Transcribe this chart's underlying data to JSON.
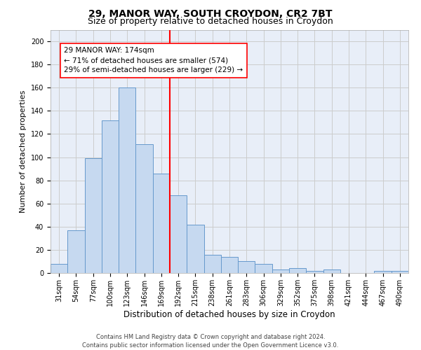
{
  "title1": "29, MANOR WAY, SOUTH CROYDON, CR2 7BT",
  "title2": "Size of property relative to detached houses in Croydon",
  "xlabel": "Distribution of detached houses by size in Croydon",
  "ylabel": "Number of detached properties",
  "footer1": "Contains HM Land Registry data © Crown copyright and database right 2024.",
  "footer2": "Contains public sector information licensed under the Open Government Licence v3.0.",
  "bar_labels": [
    "31sqm",
    "54sqm",
    "77sqm",
    "100sqm",
    "123sqm",
    "146sqm",
    "169sqm",
    "192sqm",
    "215sqm",
    "238sqm",
    "261sqm",
    "283sqm",
    "306sqm",
    "329sqm",
    "352sqm",
    "375sqm",
    "398sqm",
    "421sqm",
    "444sqm",
    "467sqm",
    "490sqm"
  ],
  "bar_values": [
    8,
    37,
    99,
    132,
    160,
    111,
    86,
    67,
    42,
    16,
    14,
    10,
    8,
    3,
    4,
    2,
    3,
    0,
    0,
    2,
    2
  ],
  "bar_color": "#c6d9f0",
  "bar_edge_color": "#6699cc",
  "vline_index": 6,
  "vline_color": "red",
  "annotation_line1": "29 MANOR WAY: 174sqm",
  "annotation_line2": "← 71% of detached houses are smaller (574)",
  "annotation_line3": "29% of semi-detached houses are larger (229) →",
  "ylim": [
    0,
    210
  ],
  "yticks": [
    0,
    20,
    40,
    60,
    80,
    100,
    120,
    140,
    160,
    180,
    200
  ],
  "grid_color": "#cccccc",
  "bg_color": "#e8eef8",
  "title1_fontsize": 10,
  "title2_fontsize": 9,
  "xlabel_fontsize": 8.5,
  "ylabel_fontsize": 8,
  "tick_fontsize": 7,
  "annotation_fontsize": 7.5,
  "footer_fontsize": 6
}
